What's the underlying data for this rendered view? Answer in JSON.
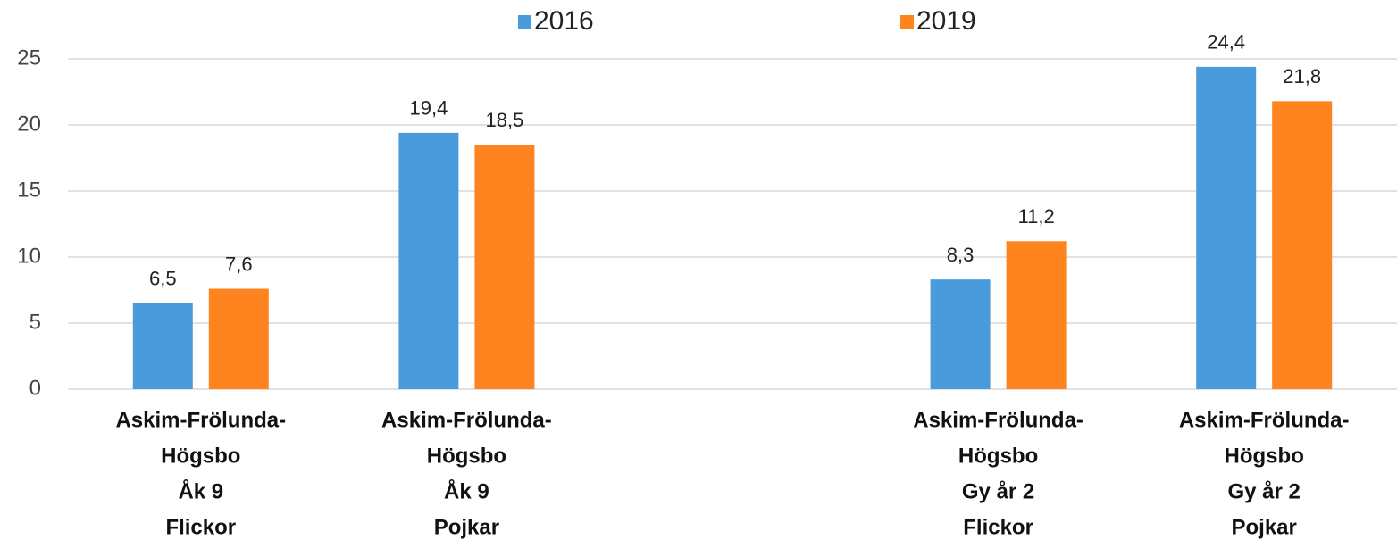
{
  "chart_data": {
    "type": "bar",
    "categories": [
      [
        "Askim-Frölunda-",
        "Högsbo",
        "Åk 9",
        "Flickor"
      ],
      [
        "Askim-Frölunda-",
        "Högsbo",
        "Åk 9",
        "Pojkar"
      ],
      null,
      [
        "Askim-Frölunda-",
        "Högsbo",
        "Gy år 2",
        "Flickor"
      ],
      [
        "Askim-Frölunda-",
        "Högsbo",
        "Gy år 2",
        "Pojkar"
      ]
    ],
    "series": [
      {
        "name": "2016",
        "color": "#4a9bdc",
        "values": [
          6.5,
          19.4,
          null,
          8.3,
          24.4
        ],
        "value_labels": [
          "6,5",
          "19,4",
          null,
          "8,3",
          "24,4"
        ]
      },
      {
        "name": "2019",
        "color": "#ff8420",
        "values": [
          7.6,
          18.5,
          null,
          11.2,
          21.8
        ],
        "value_labels": [
          "7,6",
          "18,5",
          null,
          "11,2",
          "21,8"
        ]
      }
    ],
    "ylim": [
      0,
      25
    ],
    "yticks": [
      0,
      5,
      10,
      15,
      20,
      25
    ],
    "grid": true,
    "legend": "top"
  }
}
